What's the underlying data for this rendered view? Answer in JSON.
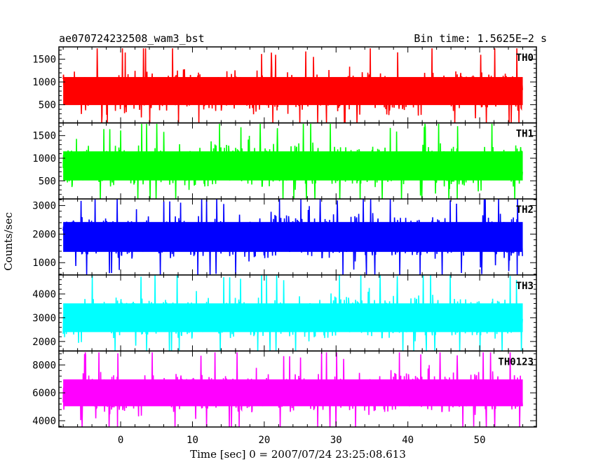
{
  "header": {
    "left": "ae070724232508_wam3_bst",
    "right": "Bin time: 1.5625E−2 s"
  },
  "chart_data": {
    "type": "line",
    "title": "ae070724232508_wam3_bst",
    "subtitle": "Bin time: 1.5625E−2 s",
    "xlabel": "Time [sec] 0 = 2007/07/24 23:25:08.613",
    "ylabel": "Counts/sec",
    "xlim": [
      -8.6,
      57.9
    ],
    "xticks": [
      0,
      10,
      20,
      30,
      40,
      50
    ],
    "xtick_labels": [
      "0",
      "10",
      "20",
      "30",
      "40",
      "50"
    ],
    "data_x_range": [
      -8.0,
      56.0
    ],
    "bin_time": 0.015625,
    "grid": false,
    "panels": [
      {
        "name": "TH0",
        "color": "#ff0000",
        "ylim": [
          100,
          1770
        ],
        "yticks": [
          500,
          1000,
          1500
        ],
        "ytick_labels": [
          "500",
          "1000",
          "1500"
        ],
        "mean": 800,
        "typical_low": 280,
        "typical_high": 1400,
        "max": 1740,
        "min": 100
      },
      {
        "name": "TH1",
        "color": "#00ff00",
        "ylim": [
          100,
          1780
        ],
        "yticks": [
          500,
          1000,
          1500
        ],
        "ytick_labels": [
          "500",
          "1000",
          "1500"
        ],
        "mean": 830,
        "typical_low": 280,
        "typical_high": 1450,
        "max": 1760,
        "min": 100
      },
      {
        "name": "TH2",
        "color": "#0000ff",
        "ylim": [
          570,
          3230
        ],
        "yticks": [
          1000,
          2000,
          3000
        ],
        "ytick_labels": [
          "1000",
          "2000",
          "3000"
        ],
        "mean": 1900,
        "typical_low": 950,
        "typical_high": 2850,
        "max": 3230,
        "min": 570
      },
      {
        "name": "TH3",
        "color": "#00ffff",
        "ylim": [
          1600,
          4800
        ],
        "yticks": [
          2000,
          3000,
          4000
        ],
        "ytick_labels": [
          "2000",
          "3000",
          "4000"
        ],
        "mean": 3000,
        "typical_low": 2100,
        "typical_high": 4300,
        "max": 4800,
        "min": 1600
      },
      {
        "name": "TH0123",
        "color": "#ff00ff",
        "ylim": [
          3550,
          9000
        ],
        "yticks": [
          4000,
          6000,
          8000
        ],
        "ytick_labels": [
          "4000",
          "6000",
          "8000"
        ],
        "mean": 6000,
        "typical_low": 4500,
        "typical_high": 8000,
        "max": 8900,
        "min": 3500
      }
    ]
  }
}
